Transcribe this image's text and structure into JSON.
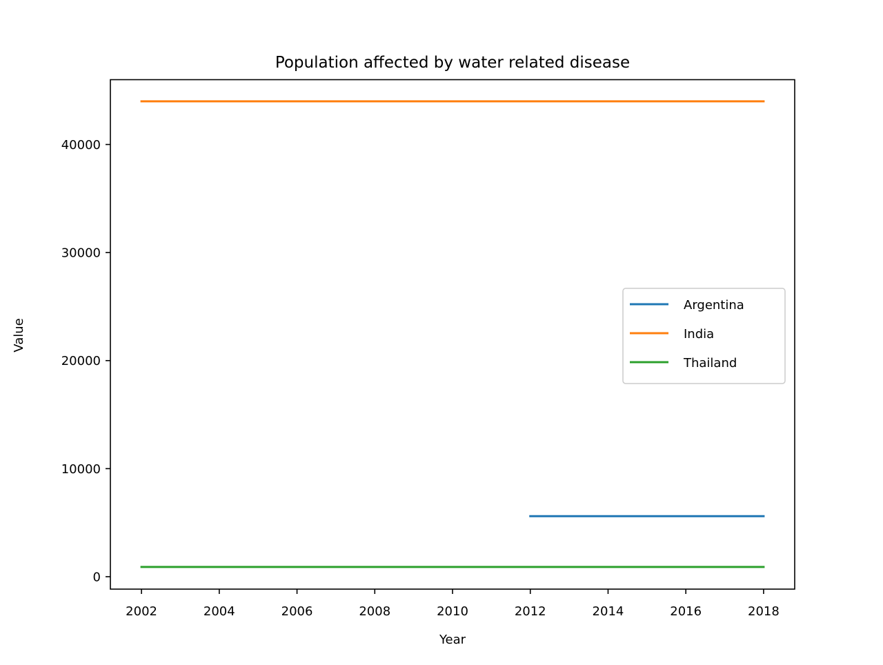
{
  "chart_data": {
    "type": "line",
    "title": "Population affected by water related disease",
    "xlabel": "Year",
    "ylabel": "Value",
    "xlim": [
      2001.2,
      2018.8
    ],
    "ylim": [
      -1150,
      46000
    ],
    "xticks": [
      2002,
      2004,
      2006,
      2008,
      2010,
      2012,
      2014,
      2016,
      2018
    ],
    "yticks": [
      0,
      10000,
      20000,
      30000,
      40000
    ],
    "grid": false,
    "legend_position": "center-right",
    "series": [
      {
        "name": "Argentina",
        "color": "#1f77b4",
        "x": [
          2012,
          2018
        ],
        "y": [
          5600,
          5600
        ]
      },
      {
        "name": "India",
        "color": "#ff7f0e",
        "x": [
          2002,
          2018
        ],
        "y": [
          44000,
          44000
        ]
      },
      {
        "name": "Thailand",
        "color": "#2ca02c",
        "x": [
          2002,
          2018
        ],
        "y": [
          900,
          900
        ]
      }
    ]
  }
}
